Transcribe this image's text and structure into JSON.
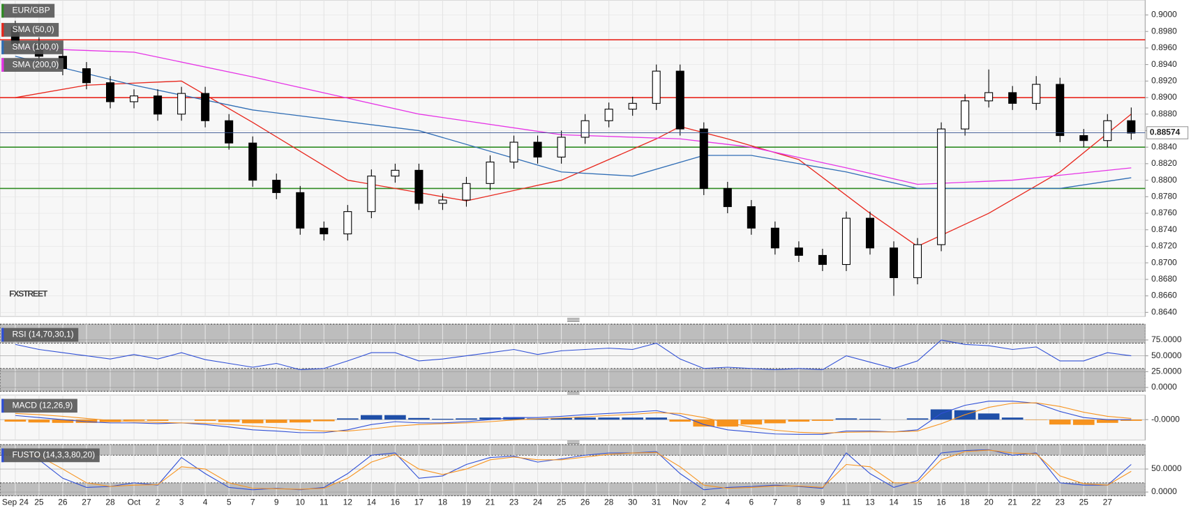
{
  "chart_data": [
    {
      "type": "candlestick",
      "title": "EUR/GBP",
      "categories": [
        "Sep 24",
        "25",
        "26",
        "27",
        "28",
        "Oct",
        "2",
        "3",
        "4",
        "5",
        "7",
        "9",
        "10",
        "11",
        "12",
        "14",
        "16",
        "17",
        "18",
        "19",
        "21",
        "23",
        "24",
        "25",
        "26",
        "28",
        "30",
        "31",
        "Nov",
        "2",
        "4",
        "6",
        "7",
        "8",
        "9",
        "11",
        "13",
        "14",
        "15",
        "16",
        "18",
        "20",
        "21",
        "22",
        "23",
        "25",
        "27",
        null
      ],
      "open": [
        0.8985,
        0.8965,
        0.895,
        0.8935,
        0.8918,
        0.8895,
        0.8902,
        0.888,
        0.8905,
        0.8872,
        0.8845,
        0.88,
        0.8785,
        0.8742,
        0.8735,
        0.8762,
        0.8805,
        0.8812,
        0.8772,
        0.8776,
        0.8796,
        0.8822,
        0.8846,
        0.8828,
        0.8852,
        0.8872,
        0.8886,
        0.8893,
        0.8932,
        0.8862,
        0.879,
        0.8768,
        0.8742,
        0.8718,
        0.8709,
        0.8698,
        0.8754,
        0.8718,
        0.8682,
        0.8722,
        0.8862,
        0.8896,
        0.8906,
        0.8893,
        0.8916,
        0.8854,
        0.8848,
        0.8872
      ],
      "high": [
        0.8993,
        0.8973,
        0.8958,
        0.8943,
        0.8926,
        0.891,
        0.891,
        0.8913,
        0.8913,
        0.888,
        0.8853,
        0.8808,
        0.8793,
        0.875,
        0.877,
        0.8813,
        0.882,
        0.882,
        0.8784,
        0.8804,
        0.883,
        0.8854,
        0.8854,
        0.886,
        0.888,
        0.8894,
        0.8901,
        0.894,
        0.894,
        0.887,
        0.8798,
        0.8776,
        0.875,
        0.8726,
        0.8717,
        0.8762,
        0.8762,
        0.8726,
        0.873,
        0.887,
        0.8904,
        0.8934,
        0.8914,
        0.8926,
        0.8924,
        0.8862,
        0.888,
        0.8888
      ],
      "low": [
        0.8957,
        0.8942,
        0.8927,
        0.891,
        0.8887,
        0.8887,
        0.8872,
        0.8872,
        0.8864,
        0.8837,
        0.8792,
        0.8777,
        0.8734,
        0.8727,
        0.8727,
        0.8754,
        0.8797,
        0.8764,
        0.8764,
        0.8768,
        0.8788,
        0.8814,
        0.882,
        0.882,
        0.8844,
        0.8864,
        0.8878,
        0.8885,
        0.8854,
        0.8782,
        0.876,
        0.8734,
        0.871,
        0.8701,
        0.869,
        0.869,
        0.871,
        0.866,
        0.8674,
        0.8714,
        0.8854,
        0.8888,
        0.8885,
        0.8885,
        0.8846,
        0.884,
        0.884,
        0.8849
      ],
      "close": [
        0.8965,
        0.895,
        0.8935,
        0.8918,
        0.8895,
        0.8902,
        0.888,
        0.8905,
        0.8872,
        0.8845,
        0.88,
        0.8785,
        0.8742,
        0.8735,
        0.8762,
        0.8805,
        0.8812,
        0.8772,
        0.8776,
        0.8796,
        0.8822,
        0.8846,
        0.8828,
        0.8852,
        0.8872,
        0.8886,
        0.8893,
        0.8932,
        0.8862,
        0.879,
        0.8768,
        0.8742,
        0.8718,
        0.8709,
        0.8698,
        0.8754,
        0.8718,
        0.8682,
        0.8722,
        0.8862,
        0.8896,
        0.8906,
        0.8893,
        0.8916,
        0.8854,
        0.8848,
        0.8872,
        0.8857
      ],
      "up_color": "#ffffff",
      "down_color": "#000000",
      "series": [
        {
          "name": "SMA (50,0)",
          "color": "#e8261c",
          "x": [
            0,
            3,
            7,
            10,
            14,
            17,
            19,
            23,
            27,
            28,
            30,
            33,
            36,
            38,
            41,
            44,
            47
          ],
          "values": [
            0.89,
            0.8915,
            0.892,
            0.887,
            0.88,
            0.8785,
            0.8775,
            0.88,
            0.885,
            0.8865,
            0.885,
            0.8825,
            0.876,
            0.872,
            0.876,
            0.881,
            0.888
          ]
        },
        {
          "name": "SMA (100,0)",
          "color": "#2f6db5",
          "x": [
            0,
            5,
            10,
            17,
            23,
            26,
            29,
            31,
            35,
            38,
            44,
            47
          ],
          "values": [
            0.895,
            0.8915,
            0.8885,
            0.886,
            0.881,
            0.8805,
            0.883,
            0.883,
            0.881,
            0.879,
            0.879,
            0.8803
          ]
        },
        {
          "name": "SMA (200,0)",
          "color": "#e633e6",
          "x": [
            0,
            5,
            10,
            17,
            23,
            28,
            31,
            35,
            38,
            42,
            47
          ],
          "values": [
            0.896,
            0.8955,
            0.8925,
            0.888,
            0.8855,
            0.885,
            0.884,
            0.8815,
            0.8795,
            0.88,
            0.8815
          ]
        }
      ],
      "levels": [
        {
          "value": 0.897,
          "color": "#e8261c"
        },
        {
          "value": 0.89,
          "color": "#e8261c"
        },
        {
          "value": 0.884,
          "color": "#2e8b22"
        },
        {
          "value": 0.879,
          "color": "#2e8b22"
        }
      ],
      "last_price": {
        "value": 0.88574,
        "label": "0.88574"
      },
      "last_color": "#34508c",
      "watermark": "FXSTREET",
      "ylim": [
        0.8635,
        0.9018
      ],
      "yticks": [
        {
          "value": 0.9,
          "label": "0.9000"
        },
        {
          "value": 0.898,
          "label": "0.8980"
        },
        {
          "value": 0.896,
          "label": "0.8960"
        },
        {
          "value": 0.894,
          "label": "0.8940"
        },
        {
          "value": 0.892,
          "label": "0.8920"
        },
        {
          "value": 0.89,
          "label": "0.8900"
        },
        {
          "value": 0.888,
          "label": "0.8880"
        },
        {
          "value": 0.886,
          "label": "0.8860"
        },
        {
          "value": 0.884,
          "label": "0.8840"
        },
        {
          "value": 0.882,
          "label": "0.8820"
        },
        {
          "value": 0.88,
          "label": "0.8800"
        },
        {
          "value": 0.878,
          "label": "0.8780"
        },
        {
          "value": 0.876,
          "label": "0.8760"
        },
        {
          "value": 0.874,
          "label": "0.8740"
        },
        {
          "value": 0.872,
          "label": "0.8720"
        },
        {
          "value": 0.87,
          "label": "0.8700"
        },
        {
          "value": 0.868,
          "label": "0.8680"
        },
        {
          "value": 0.866,
          "label": "0.8660"
        },
        {
          "value": 0.864,
          "label": "0.8640"
        }
      ],
      "grid": true
    },
    {
      "type": "line",
      "title": "RSI (14,70,30,1)",
      "series": [
        {
          "color": "#2f4fd6",
          "values": [
            68,
            60,
            55,
            50,
            45,
            52,
            45,
            55,
            44,
            38,
            32,
            38,
            28,
            30,
            42,
            55,
            55,
            42,
            45,
            50,
            55,
            60,
            52,
            58,
            60,
            62,
            60,
            70,
            45,
            30,
            32,
            30,
            28,
            30,
            28,
            50,
            40,
            30,
            42,
            75,
            68,
            66,
            60,
            64,
            42,
            42,
            55,
            50
          ]
        }
      ],
      "bands": [
        70,
        30
      ],
      "ylim": [
        -6,
        100
      ],
      "yticks": [
        {
          "value": 0,
          "label": "0.0000"
        },
        {
          "value": 25,
          "label": "25.0000"
        },
        {
          "value": 50,
          "label": "50.0000"
        },
        {
          "value": 75,
          "label": "75.0000"
        }
      ]
    },
    {
      "type": "macd",
      "title": "MACD (12,26,9)",
      "series": [
        {
          "color": "#2f4fd6",
          "values": [
            0.001,
            0.0005,
            0,
            -0.0005,
            -0.0008,
            -0.0008,
            -0.001,
            -0.0008,
            -0.0012,
            -0.0018,
            -0.0025,
            -0.0028,
            -0.0032,
            -0.0032,
            -0.0025,
            -0.0012,
            -0.0005,
            -0.0008,
            -0.0008,
            -0.0005,
            0,
            0.0005,
            0.0005,
            0.0008,
            0.0012,
            0.0015,
            0.0018,
            0.0022,
            0.001,
            -0.0012,
            -0.0025,
            -0.003,
            -0.0035,
            -0.0036,
            -0.0036,
            -0.0028,
            -0.0028,
            -0.003,
            -0.0025,
            0.0015,
            0.0035,
            0.0045,
            0.0045,
            0.004,
            0.002,
            0.0005,
            0,
            0
          ]
        },
        {
          "color": "#f7931e",
          "values": [
            0.0015,
            0.0012,
            0.0008,
            0.0003,
            -0.0002,
            -0.0005,
            -0.0007,
            -0.0008,
            -0.0009,
            -0.0012,
            -0.0016,
            -0.002,
            -0.0025,
            -0.0028,
            -0.0028,
            -0.0023,
            -0.0016,
            -0.0012,
            -0.001,
            -0.0008,
            -0.0005,
            -0.0001,
            0.0002,
            0.0004,
            0.0007,
            0.001,
            0.0013,
            0.0017,
            0.0015,
            0.0005,
            -0.0008,
            -0.0018,
            -0.0026,
            -0.0031,
            -0.0033,
            -0.0031,
            -0.003,
            -0.003,
            -0.0028,
            -0.001,
            0.0012,
            0.003,
            0.004,
            0.0041,
            0.0032,
            0.0018,
            0.0008,
            0.0003
          ]
        }
      ],
      "histogram": [
        -0.0005,
        -0.0007,
        -0.0008,
        -0.0008,
        -0.0006,
        -0.0003,
        -0.0003,
        0,
        -0.0003,
        -0.0006,
        -0.0009,
        -0.0008,
        -0.0007,
        -0.0004,
        0.0003,
        0.0011,
        0.0011,
        0.0004,
        0.0002,
        0.0003,
        0.0005,
        0.0006,
        0.0003,
        0.0004,
        0.0005,
        0.0005,
        0.0005,
        0.0005,
        -0.0005,
        -0.0017,
        -0.0017,
        -0.0012,
        -0.0009,
        -0.0005,
        -0.0003,
        0.0003,
        0.0002,
        0,
        0.0003,
        0.0025,
        0.0023,
        0.0015,
        0.0005,
        -0.0001,
        -0.0012,
        -0.0013,
        -0.0008,
        -0.0003
      ],
      "positive_color": "#1f4fa8",
      "negative_color": "#f7931e",
      "ylim": [
        -0.005,
        0.006
      ],
      "yticks": [
        {
          "value": 0,
          "label": "-0.0000"
        }
      ]
    },
    {
      "type": "line",
      "title": "FUSTO (14,3,3,80,20)",
      "series": [
        {
          "color": "#2f4fd6",
          "values": [
            85,
            70,
            30,
            10,
            12,
            20,
            15,
            75,
            40,
            10,
            5,
            8,
            5,
            10,
            40,
            80,
            85,
            30,
            35,
            60,
            75,
            78,
            65,
            72,
            80,
            85,
            85,
            88,
            40,
            5,
            10,
            12,
            15,
            12,
            8,
            85,
            40,
            10,
            25,
            85,
            90,
            92,
            80,
            85,
            20,
            15,
            15,
            60
          ]
        },
        {
          "color": "#f7931e",
          "values": [
            80,
            78,
            50,
            20,
            12,
            15,
            16,
            55,
            50,
            20,
            8,
            7,
            6,
            8,
            30,
            65,
            82,
            50,
            38,
            50,
            70,
            76,
            70,
            70,
            76,
            82,
            85,
            86,
            55,
            15,
            8,
            10,
            13,
            13,
            10,
            60,
            55,
            20,
            20,
            70,
            88,
            91,
            85,
            83,
            35,
            18,
            15,
            45
          ]
        }
      ],
      "bands": [
        80,
        20
      ],
      "ylim": [
        -8,
        103
      ],
      "yticks": [
        {
          "value": 0,
          "label": "0.0000"
        },
        {
          "value": 50,
          "label": "50.0000"
        }
      ]
    }
  ]
}
